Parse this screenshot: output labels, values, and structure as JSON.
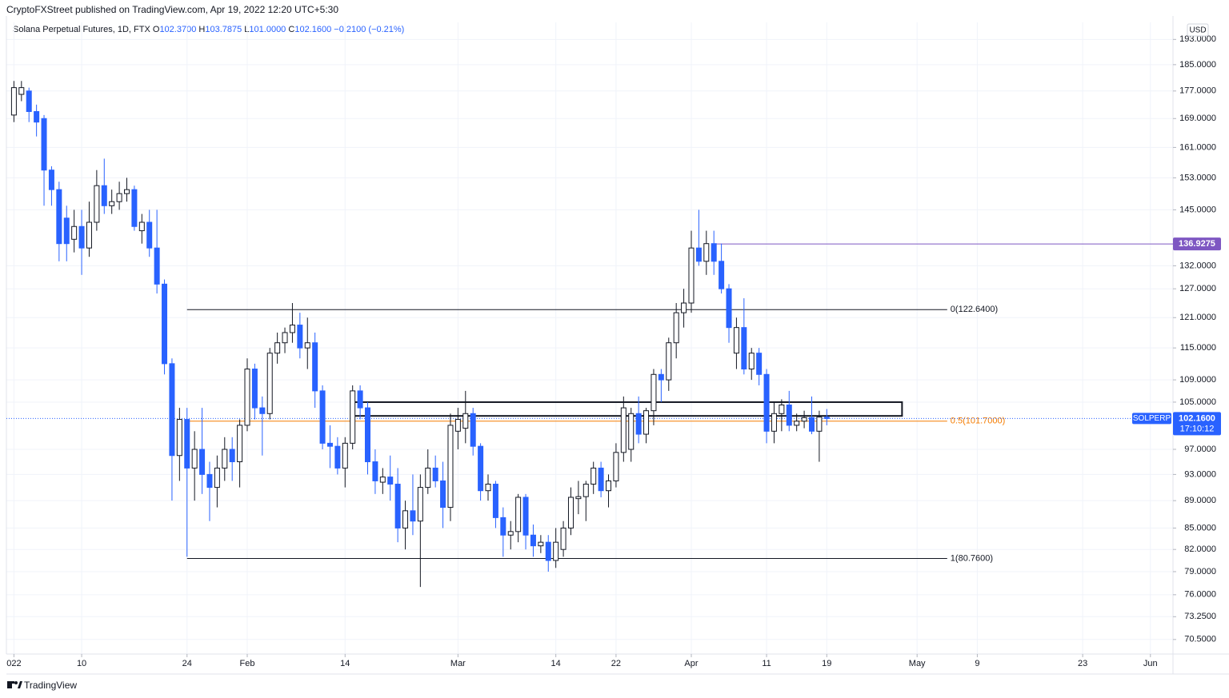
{
  "header": {
    "publisher": "CryptoFXStreet published on TradingView.com, Apr 19, 2022 12:20 UTC+5:30"
  },
  "chart_data": {
    "type": "candlestick",
    "title": "Solana Perpetual Futures, 1D, FTX",
    "legend_values": [
      {
        "key": "O",
        "value": "102.3700"
      },
      {
        "key": "H",
        "value": "103.7875"
      },
      {
        "key": "L",
        "value": "101.0000"
      },
      {
        "key": "C",
        "value": "102.1600"
      }
    ],
    "change": "−0.2100 (−0.21%)",
    "currency": "USD",
    "symbol": "SOLPERP",
    "last_price": {
      "value": 102.16,
      "label": "102.1600"
    },
    "countdown": "17:10:12",
    "x": [
      "2022-01-01",
      "2022-01-02",
      "2022-01-03",
      "2022-01-04",
      "2022-01-05",
      "2022-01-06",
      "2022-01-07",
      "2022-01-08",
      "2022-01-09",
      "2022-01-10",
      "2022-01-11",
      "2022-01-12",
      "2022-01-13",
      "2022-01-14",
      "2022-01-15",
      "2022-01-16",
      "2022-01-17",
      "2022-01-18",
      "2022-01-19",
      "2022-01-20",
      "2022-01-21",
      "2022-01-22",
      "2022-01-23",
      "2022-01-24",
      "2022-01-25",
      "2022-01-26",
      "2022-01-27",
      "2022-01-28",
      "2022-01-29",
      "2022-01-30",
      "2022-01-31",
      "2022-02-01",
      "2022-02-02",
      "2022-02-03",
      "2022-02-04",
      "2022-02-05",
      "2022-02-06",
      "2022-02-07",
      "2022-02-08",
      "2022-02-09",
      "2022-02-10",
      "2022-02-11",
      "2022-02-12",
      "2022-02-13",
      "2022-02-14",
      "2022-02-15",
      "2022-02-16",
      "2022-02-17",
      "2022-02-18",
      "2022-02-19",
      "2022-02-20",
      "2022-02-21",
      "2022-02-22",
      "2022-02-23",
      "2022-02-24",
      "2022-02-25",
      "2022-02-26",
      "2022-02-27",
      "2022-02-28",
      "2022-03-01",
      "2022-03-02",
      "2022-03-03",
      "2022-03-04",
      "2022-03-05",
      "2022-03-06",
      "2022-03-07",
      "2022-03-08",
      "2022-03-09",
      "2022-03-10",
      "2022-03-11",
      "2022-03-12",
      "2022-03-13",
      "2022-03-14",
      "2022-03-15",
      "2022-03-16",
      "2022-03-17",
      "2022-03-18",
      "2022-03-19",
      "2022-03-20",
      "2022-03-21",
      "2022-03-22",
      "2022-03-23",
      "2022-03-24",
      "2022-03-25",
      "2022-03-26",
      "2022-03-27",
      "2022-03-28",
      "2022-03-29",
      "2022-03-30",
      "2022-03-31",
      "2022-04-01",
      "2022-04-02",
      "2022-04-03",
      "2022-04-04",
      "2022-04-05",
      "2022-04-06",
      "2022-04-07",
      "2022-04-08",
      "2022-04-09",
      "2022-04-10",
      "2022-04-11",
      "2022-04-12",
      "2022-04-13",
      "2022-04-14",
      "2022-04-15",
      "2022-04-16",
      "2022-04-17",
      "2022-04-18",
      "2022-04-19"
    ],
    "open": [
      170,
      176,
      177,
      171,
      169,
      155,
      150,
      143,
      138,
      141,
      136,
      142,
      151,
      146,
      147,
      149,
      150,
      140,
      142,
      136,
      128,
      112,
      96,
      102,
      94,
      97,
      93,
      91,
      94,
      97,
      95,
      101,
      111,
      104,
      103,
      114,
      116,
      118,
      119.5,
      115,
      116,
      107,
      98,
      97.5,
      94,
      98,
      107,
      104,
      95,
      91.8,
      92.6,
      91.5,
      85,
      87.5,
      86,
      91,
      94,
      92,
      88,
      100,
      100.5,
      103,
      97.5,
      90.5,
      91.5,
      86.5,
      84,
      84.5,
      89.5,
      84,
      82.5,
      83,
      80.5,
      82,
      85,
      89.3,
      89.6,
      91.5,
      94,
      90.5,
      92,
      96.5,
      97,
      103,
      99.5,
      103.5,
      110,
      109,
      116,
      122,
      124,
      136,
      133,
      137,
      133,
      127,
      114,
      119,
      111,
      114,
      110,
      100,
      103,
      104.5,
      101,
      101.7,
      102.3,
      100,
      102.37
    ],
    "high": [
      180,
      180,
      178,
      173,
      170,
      156,
      152,
      146,
      145,
      145,
      147,
      155,
      158,
      150,
      152,
      153,
      151,
      144,
      145,
      145,
      129,
      113,
      104,
      104,
      100,
      104,
      95,
      96,
      99,
      99,
      102,
      113,
      112,
      106,
      115,
      118,
      119,
      124,
      122,
      121,
      118,
      108,
      101,
      99,
      99,
      108,
      108,
      105,
      97,
      94,
      96,
      94,
      89,
      93,
      93,
      97,
      96,
      95,
      103,
      104,
      107,
      104,
      98,
      93,
      92,
      88,
      86,
      90,
      90,
      85.5,
      84,
      84,
      85,
      86,
      91,
      92,
      92,
      95,
      95,
      93,
      98,
      106,
      104,
      106,
      104,
      111,
      111,
      117,
      124,
      127,
      140,
      145,
      140,
      140,
      137,
      128,
      121,
      125,
      115,
      115,
      111,
      105,
      105.5,
      107,
      103,
      103.5,
      106,
      103.5,
      103.7875
    ],
    "low": [
      168,
      174,
      168,
      164,
      146,
      146,
      133,
      133,
      135,
      130,
      134,
      140,
      144,
      144,
      145,
      147,
      140,
      137,
      134,
      126,
      110,
      89,
      92,
      81,
      89,
      90,
      86,
      88,
      92,
      92,
      91,
      100,
      102,
      96,
      102,
      112,
      114,
      116,
      113,
      111,
      104,
      97,
      94,
      93,
      91,
      97,
      102,
      93,
      90,
      90,
      89,
      83,
      82,
      84,
      77,
      90,
      91,
      85,
      86,
      97,
      98,
      96,
      89,
      89,
      85,
      81,
      82,
      83,
      82,
      81,
      81.5,
      79,
      79.5,
      81,
      84,
      87,
      86,
      90,
      89.5,
      88,
      91,
      95,
      95,
      98,
      98,
      101,
      105,
      107,
      113,
      119,
      122,
      132,
      130,
      130,
      126,
      116,
      111,
      110,
      109,
      108,
      98,
      98,
      100,
      100,
      100,
      100.5,
      99.5,
      95,
      101
    ],
    "close": [
      178,
      178,
      171,
      168,
      155,
      150,
      137,
      137,
      141,
      136,
      142,
      151,
      146,
      147,
      149,
      150,
      141,
      142,
      136,
      128,
      112,
      96,
      102,
      94,
      97,
      93,
      91,
      94,
      97,
      95,
      101,
      111,
      104,
      103,
      114,
      116,
      118,
      119.5,
      115,
      116,
      107,
      98,
      97.5,
      94,
      98,
      107,
      104,
      95,
      92,
      92.6,
      91.5,
      85,
      87.5,
      86,
      91,
      94,
      92,
      88,
      101,
      102,
      103,
      97.5,
      90.5,
      91.5,
      86.5,
      84,
      84.5,
      89.5,
      84,
      82.5,
      83,
      80.5,
      83,
      85,
      89.5,
      89.6,
      91.5,
      94,
      90.5,
      92,
      96.5,
      104,
      103,
      99.5,
      103.5,
      110,
      109,
      116,
      122,
      124,
      136,
      133,
      137,
      133,
      127,
      119,
      119,
      111,
      114,
      110,
      100,
      103,
      104.5,
      101,
      101.7,
      102.3,
      100,
      102.4,
      102.16
    ],
    "up_color": "#ffffff",
    "up_border": "#131722",
    "down_color": "#2962ff",
    "log_scale": true,
    "grid": true,
    "xlim": [
      "2021-12-31",
      "2022-06-04"
    ],
    "xticks": [
      {
        "value": "2022-01-01",
        "label": "022"
      },
      {
        "value": "2022-01-10",
        "label": "10"
      },
      {
        "value": "2022-01-24",
        "label": "24"
      },
      {
        "value": "2022-02-01",
        "label": "Feb"
      },
      {
        "value": "2022-02-14",
        "label": "14"
      },
      {
        "value": "2022-03-01",
        "label": "Mar"
      },
      {
        "value": "2022-03-14",
        "label": "14"
      },
      {
        "value": "2022-03-22",
        "label": "22"
      },
      {
        "value": "2022-04-01",
        "label": "Apr"
      },
      {
        "value": "2022-04-11",
        "label": "11"
      },
      {
        "value": "2022-04-19",
        "label": "19"
      },
      {
        "value": "2022-05-01",
        "label": "May"
      },
      {
        "value": "2022-05-09",
        "label": "9"
      },
      {
        "value": "2022-05-23",
        "label": "23"
      },
      {
        "value": "2022-06-01",
        "label": "Jun"
      }
    ],
    "ylim": [
      68.8,
      198.6
    ],
    "yticks": [
      {
        "value": 70.5,
        "label": "70.5000"
      },
      {
        "value": 73.25,
        "label": "73.2500"
      },
      {
        "value": 76,
        "label": "76.0000"
      },
      {
        "value": 79,
        "label": "79.0000"
      },
      {
        "value": 82,
        "label": "82.0000"
      },
      {
        "value": 85,
        "label": "85.0000"
      },
      {
        "value": 89,
        "label": "89.0000"
      },
      {
        "value": 93,
        "label": "93.0000"
      },
      {
        "value": 97,
        "label": "97.0000"
      },
      {
        "value": 105,
        "label": "105.0000"
      },
      {
        "value": 109,
        "label": "109.0000"
      },
      {
        "value": 115,
        "label": "115.0000"
      },
      {
        "value": 121,
        "label": "121.0000"
      },
      {
        "value": 127,
        "label": "127.0000"
      },
      {
        "value": 132,
        "label": "132.0000"
      },
      {
        "value": 145,
        "label": "145.0000"
      },
      {
        "value": 153,
        "label": "153.0000"
      },
      {
        "value": 161,
        "label": "161.0000"
      },
      {
        "value": 169,
        "label": "169.0000"
      },
      {
        "value": 177,
        "label": "177.0000"
      },
      {
        "value": 185,
        "label": "185.0000"
      },
      {
        "value": 193,
        "label": "193.0000"
      }
    ],
    "levels": [
      {
        "value": 122.64,
        "label": "0(122.6400)",
        "color": "#131722",
        "start": "2022-01-24",
        "end": "2022-05-05"
      },
      {
        "value": 101.7,
        "label": "0.5(101.7000)",
        "color": "#f57c00",
        "start": "2022-01-24",
        "end": "2022-05-05"
      },
      {
        "value": 80.76,
        "label": "1(80.7600)",
        "color": "#131722",
        "start": "2022-01-24",
        "end": "2022-05-05"
      }
    ],
    "zone": {
      "start": "2022-02-15",
      "end": "2022-04-29",
      "top": 105,
      "bottom": 102.6,
      "color": "#131722"
    },
    "ray": {
      "value": 136.9275,
      "label": "136.9275",
      "start": "2022-04-04",
      "color": "#7e57c2"
    }
  },
  "footer": {
    "brand": "TradingView"
  }
}
